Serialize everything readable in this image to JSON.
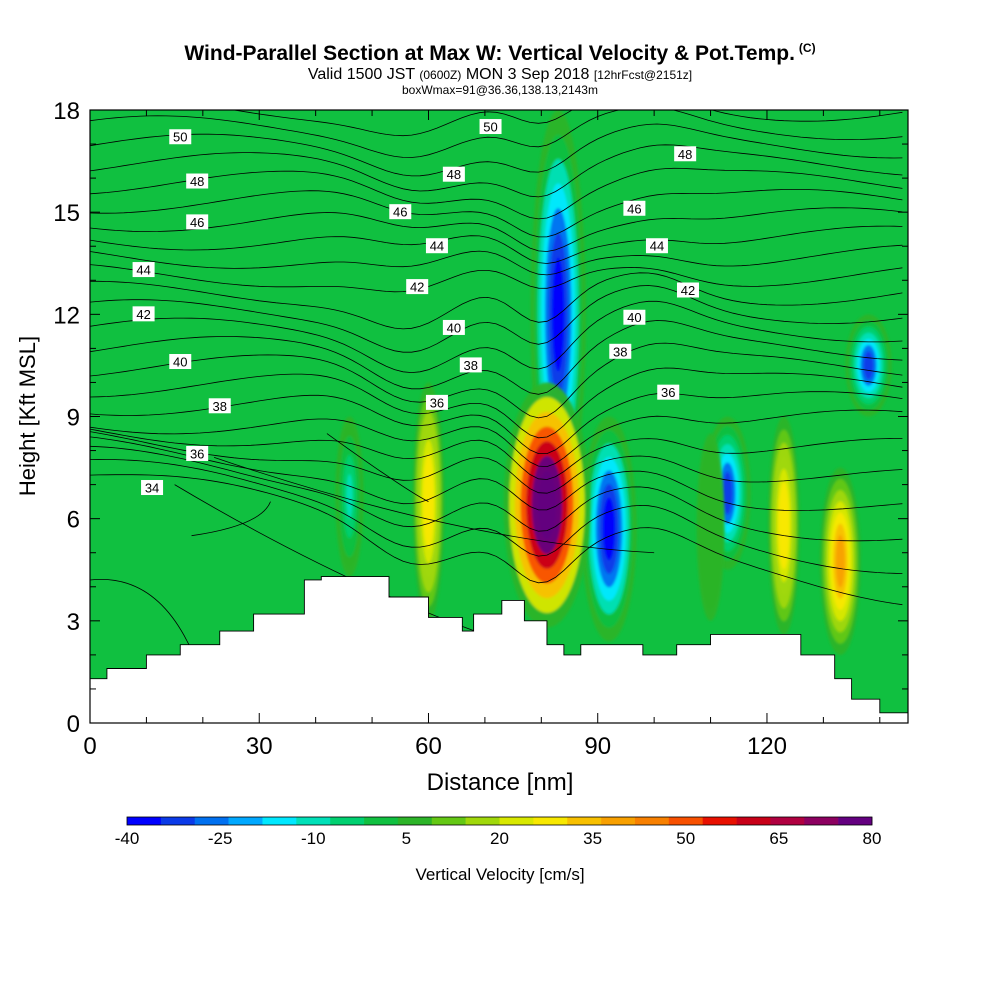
{
  "title": {
    "line1": "Wind-Parallel Section at Max W: Vertical Velocity & Pot.Temp.",
    "copyright": "(C)",
    "line2_a": "Valid 1500 JST",
    "line2_b": "(0600Z)",
    "line2_c": "MON 3 Sep 2018",
    "line2_d": "[12hrFcst@2151z]",
    "line3": "boxWmax=91@36.36,138.13,2143m"
  },
  "chart_data": {
    "type": "heatmap",
    "xlabel": "Distance [nm]",
    "ylabel": "Height [Kft MSL]",
    "xlim": [
      0,
      145
    ],
    "ylim": [
      0,
      18
    ],
    "x_ticks": [
      0,
      30,
      60,
      90,
      120
    ],
    "y_ticks": [
      0,
      3,
      6,
      9,
      12,
      15,
      18
    ],
    "colorbar": {
      "label": "Vertical Velocity [cm/s]",
      "tick_labels": [
        "-40",
        "-25",
        "-10",
        "5",
        "20",
        "35",
        "50",
        "65",
        "80"
      ],
      "tick_values": [
        -40,
        -25,
        -10,
        5,
        20,
        35,
        50,
        65,
        80
      ],
      "colors": [
        "#0000ff",
        "#0a3ae8",
        "#0070f0",
        "#00a8ff",
        "#00e8ff",
        "#00e0b8",
        "#00d070",
        "#10c040",
        "#2cb428",
        "#64c814",
        "#a0d80a",
        "#d8e800",
        "#f8e800",
        "#f8c000",
        "#f8a000",
        "#f88000",
        "#f85000",
        "#e81000",
        "#c80018",
        "#b00040",
        "#8c0060",
        "#640080"
      ]
    },
    "updrafts": [
      {
        "x": 60,
        "z_bottom": 3.0,
        "z_top": 10.0,
        "w_max": 30
      },
      {
        "x": 81,
        "z_bottom": 2.8,
        "z_top": 10.0,
        "w_max": 91
      },
      {
        "x": 110,
        "z_bottom": 3.0,
        "z_top": 8.5,
        "w_max": 5
      },
      {
        "x": 123,
        "z_bottom": 2.6,
        "z_top": 9.0,
        "w_max": 30
      },
      {
        "x": 133,
        "z_bottom": 2.0,
        "z_top": 7.5,
        "w_max": 40
      }
    ],
    "downdrafts": [
      {
        "x": 46,
        "z_bottom": 4.3,
        "z_top": 9.0,
        "w_min": -10
      },
      {
        "x": 83,
        "z_bottom": 6.0,
        "z_top": 18.0,
        "w_min": -40
      },
      {
        "x": 92,
        "z_bottom": 2.4,
        "z_top": 9.0,
        "w_min": -40
      },
      {
        "x": 113,
        "z_bottom": 4.5,
        "z_top": 9.0,
        "w_min": -30
      },
      {
        "x": 138,
        "z_bottom": 9.0,
        "z_top": 12.0,
        "w_min": -30
      }
    ],
    "terrain": {
      "x": [
        0,
        3,
        10,
        16,
        23,
        29,
        38,
        41,
        44,
        53,
        60,
        66,
        68,
        73,
        77,
        81,
        84,
        87,
        98,
        104,
        110,
        119,
        126,
        132,
        135,
        140,
        145
      ],
      "height": [
        1.3,
        1.6,
        2.0,
        2.3,
        2.7,
        3.2,
        4.2,
        4.3,
        4.3,
        3.7,
        3.1,
        2.7,
        3.2,
        3.6,
        3.0,
        2.3,
        2.0,
        2.3,
        2.0,
        2.3,
        2.6,
        2.6,
        2.0,
        1.3,
        0.7,
        0.3,
        0.3
      ]
    },
    "theta_labels": [
      {
        "text": "34",
        "x": 11,
        "z": 6.9
      },
      {
        "text": "36",
        "x": 19,
        "z": 7.9
      },
      {
        "text": "38",
        "x": 23,
        "z": 9.3
      },
      {
        "text": "40",
        "x": 16,
        "z": 10.6
      },
      {
        "text": "42",
        "x": 9.5,
        "z": 12.0
      },
      {
        "text": "44",
        "x": 9.5,
        "z": 13.3
      },
      {
        "text": "46",
        "x": 19,
        "z": 14.7
      },
      {
        "text": "48",
        "x": 19,
        "z": 15.9
      },
      {
        "text": "50",
        "x": 16,
        "z": 17.2
      },
      {
        "text": "50",
        "x": 71,
        "z": 17.5
      },
      {
        "text": "48",
        "x": 64.5,
        "z": 16.1
      },
      {
        "text": "46",
        "x": 55,
        "z": 15.0
      },
      {
        "text": "44",
        "x": 61.5,
        "z": 14.0
      },
      {
        "text": "42",
        "x": 58,
        "z": 12.8
      },
      {
        "text": "40",
        "x": 64.5,
        "z": 11.6
      },
      {
        "text": "38",
        "x": 67.5,
        "z": 10.5
      },
      {
        "text": "36",
        "x": 61.5,
        "z": 9.4
      },
      {
        "text": "48",
        "x": 105.5,
        "z": 16.7
      },
      {
        "text": "46",
        "x": 96.5,
        "z": 15.1
      },
      {
        "text": "44",
        "x": 100.5,
        "z": 14.0
      },
      {
        "text": "42",
        "x": 106,
        "z": 12.7
      },
      {
        "text": "40",
        "x": 96.5,
        "z": 11.9
      },
      {
        "text": "38",
        "x": 94,
        "z": 10.9
      },
      {
        "text": "36",
        "x": 102.5,
        "z": 9.7
      }
    ]
  }
}
